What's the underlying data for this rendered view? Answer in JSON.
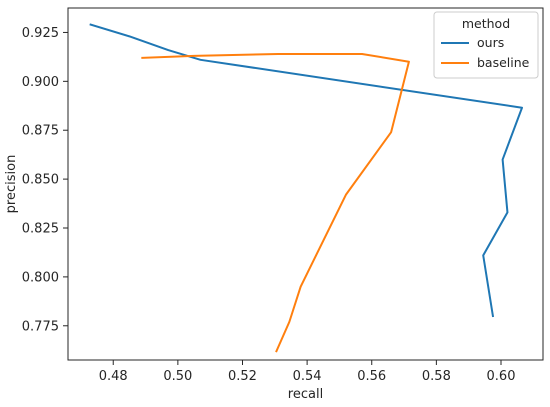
{
  "chart_data": {
    "type": "line",
    "title": "",
    "xlabel": "recall",
    "ylabel": "precision",
    "xlim": [
      0.466,
      0.613
    ],
    "ylim": [
      0.7575,
      0.9375
    ],
    "xticks": [
      0.48,
      0.5,
      0.52,
      0.54,
      0.56,
      0.58,
      0.6
    ],
    "xtick_labels": [
      "0.48",
      "0.50",
      "0.52",
      "0.54",
      "0.56",
      "0.58",
      "0.60"
    ],
    "yticks": [
      0.775,
      0.8,
      0.825,
      0.85,
      0.875,
      0.9,
      0.925
    ],
    "ytick_labels": [
      "0.775",
      "0.800",
      "0.825",
      "0.850",
      "0.875",
      "0.900",
      "0.925"
    ],
    "grid": false,
    "legend": {
      "title": "method",
      "placement": "top-right"
    },
    "series": [
      {
        "name": "ours",
        "color": "#1f77b4",
        "points": [
          {
            "x": 0.473,
            "y": 0.929
          },
          {
            "x": 0.485,
            "y": 0.923
          },
          {
            "x": 0.497,
            "y": 0.916
          },
          {
            "x": 0.507,
            "y": 0.911
          },
          {
            "x": 0.6065,
            "y": 0.8865
          },
          {
            "x": 0.6005,
            "y": 0.86
          },
          {
            "x": 0.602,
            "y": 0.833
          },
          {
            "x": 0.5945,
            "y": 0.811
          },
          {
            "x": 0.5975,
            "y": 0.78
          }
        ]
      },
      {
        "name": "baseline",
        "color": "#ff7f0e",
        "points": [
          {
            "x": 0.489,
            "y": 0.912
          },
          {
            "x": 0.505,
            "y": 0.913
          },
          {
            "x": 0.531,
            "y": 0.914
          },
          {
            "x": 0.557,
            "y": 0.914
          },
          {
            "x": 0.5715,
            "y": 0.91
          },
          {
            "x": 0.566,
            "y": 0.874
          },
          {
            "x": 0.552,
            "y": 0.842
          },
          {
            "x": 0.538,
            "y": 0.795
          },
          {
            "x": 0.5345,
            "y": 0.777
          },
          {
            "x": 0.5305,
            "y": 0.762
          }
        ]
      }
    ]
  }
}
